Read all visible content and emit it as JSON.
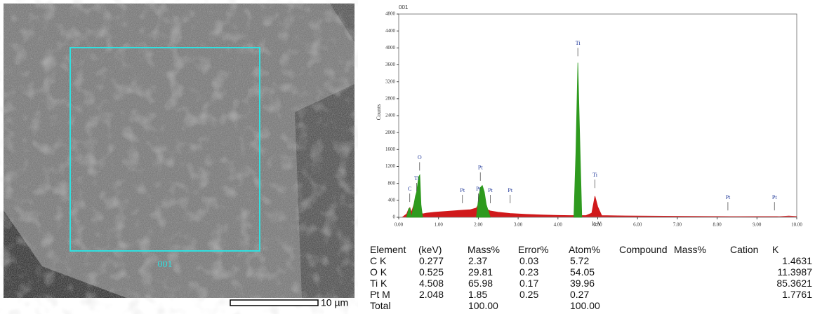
{
  "sem": {
    "region_label": "001",
    "scale_label": "10 µm"
  },
  "chart_data": {
    "type": "area",
    "title": "001",
    "x_label": "keV",
    "y_label": "Counts",
    "x": [
      0.1,
      0.2,
      0.25,
      0.28,
      0.32,
      0.38,
      0.42,
      0.45,
      0.5,
      0.53,
      0.56,
      0.6,
      0.7,
      0.9,
      1.2,
      1.5,
      1.8,
      1.95,
      2.0,
      2.05,
      2.1,
      2.15,
      2.2,
      2.3,
      2.5,
      2.8,
      3.2,
      3.6,
      4.0,
      4.3,
      4.4,
      4.45,
      4.5,
      4.55,
      4.6,
      4.7,
      4.85,
      4.93,
      5.0,
      5.1,
      5.5,
      6.0,
      7.0,
      8.0,
      9.0,
      9.5,
      9.8,
      10.0
    ],
    "series": [
      {
        "color": "#d0191b",
        "values": [
          10,
          80,
          200,
          230,
          120,
          300,
          420,
          450,
          300,
          200,
          120,
          80,
          100,
          120,
          140,
          160,
          180,
          220,
          300,
          350,
          320,
          260,
          200,
          150,
          120,
          90,
          70,
          55,
          45,
          40,
          40,
          40,
          40,
          40,
          40,
          40,
          100,
          500,
          250,
          40,
          35,
          30,
          25,
          20,
          15,
          15,
          30,
          20
        ]
      },
      {
        "color": "#2e9a1e",
        "values": [
          null,
          0,
          200,
          220,
          0,
          300,
          500,
          600,
          950,
          1000,
          300,
          0,
          null,
          null,
          null,
          null,
          null,
          0,
          400,
          700,
          750,
          600,
          300,
          0,
          null,
          null,
          null,
          null,
          null,
          null,
          0,
          1500,
          3650,
          1800,
          0,
          null,
          null,
          null,
          null,
          null,
          null,
          null,
          null,
          null,
          null,
          null,
          null,
          null
        ]
      }
    ],
    "annotations": [
      {
        "text": "C",
        "x": 0.277,
        "y": 660
      },
      {
        "text": "Ti",
        "x": 0.45,
        "y": 910
      },
      {
        "text": "O",
        "x": 0.525,
        "y": 1400
      },
      {
        "text": "Pt",
        "x": 1.6,
        "y": 630
      },
      {
        "text": "Pt",
        "x": 2.0,
        "y": 660
      },
      {
        "text": "Pt",
        "x": 2.05,
        "y": 1160
      },
      {
        "text": "Pt",
        "x": 2.3,
        "y": 630
      },
      {
        "text": "Pt",
        "x": 2.8,
        "y": 630
      },
      {
        "text": "Ti",
        "x": 4.5,
        "y": 4100
      },
      {
        "text": "Ti",
        "x": 4.93,
        "y": 990
      },
      {
        "text": "Pt",
        "x": 8.27,
        "y": 460
      },
      {
        "text": "Pt",
        "x": 9.44,
        "y": 460
      }
    ],
    "xlim": [
      0,
      10
    ],
    "ylim": [
      0,
      4800
    ],
    "xticks": [
      {
        "value": 0,
        "label": "0.00"
      },
      {
        "value": 1,
        "label": "1.00"
      },
      {
        "value": 2,
        "label": "2.00"
      },
      {
        "value": 3,
        "label": "3.00"
      },
      {
        "value": 4,
        "label": "4.00"
      },
      {
        "value": 5,
        "label": "5.00"
      },
      {
        "value": 6,
        "label": "6.00"
      },
      {
        "value": 7,
        "label": "7.00"
      },
      {
        "value": 8,
        "label": "8.00"
      },
      {
        "value": 9,
        "label": "9.00"
      },
      {
        "value": 10,
        "label": "10.00"
      }
    ],
    "yticks": [
      0,
      400,
      800,
      1200,
      1600,
      2000,
      2400,
      2800,
      3200,
      3600,
      4000,
      4400,
      4800
    ]
  },
  "table": {
    "header": [
      "Element",
      "(keV)",
      "Mass%",
      "Error%",
      "Atom%",
      "Compound",
      "Mass%",
      "Cation",
      "K"
    ],
    "rows": [
      {
        "element": "C K",
        "kev": "0.277",
        "mass": "2.37",
        "error": "0.03",
        "atom": "5.72",
        "k": "1.4631"
      },
      {
        "element": "O K",
        "kev": "0.525",
        "mass": "29.81",
        "error": "0.23",
        "atom": "54.05",
        "k": "11.3987"
      },
      {
        "element": "Ti K",
        "kev": "4.508",
        "mass": "65.98",
        "error": "0.17",
        "atom": "39.96",
        "k": "85.3621"
      },
      {
        "element": "Pt M",
        "kev": "2.048",
        "mass": "1.85",
        "error": "0.25",
        "atom": "0.27",
        "k": "1.7761"
      },
      {
        "element": "Total",
        "mass": "100.00",
        "atom": "100.00"
      }
    ]
  }
}
